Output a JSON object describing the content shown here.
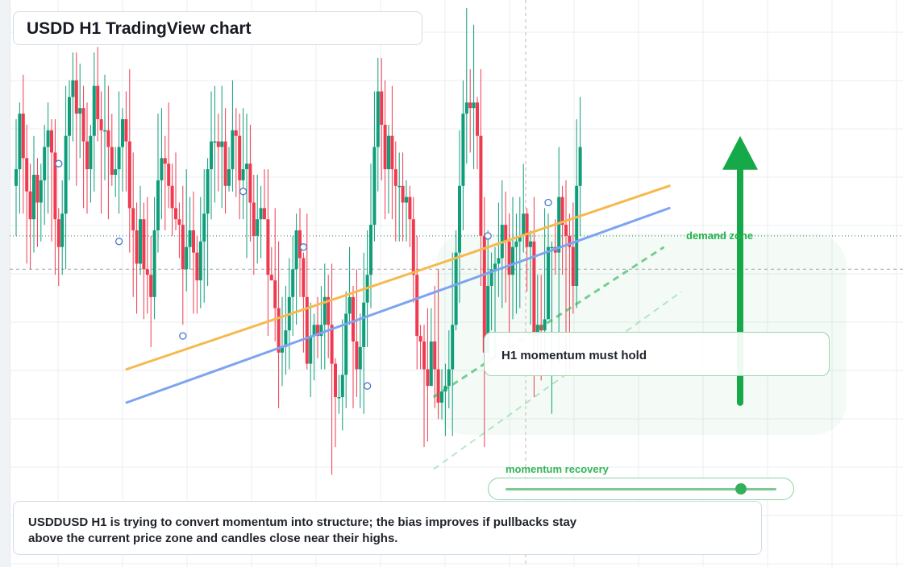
{
  "header": {
    "title": "USDD H1 TradingView chart"
  },
  "annotations": {
    "zone_label": "demand zone",
    "momentum_note": "H1 momentum must hold",
    "meter_label": "momentum recovery",
    "meter_level": 0.87
  },
  "caption": "USDDUSD H1 is trying to convert momentum into structure; the bias improves if pullbacks stay above the current price zone and candles close near their highs.",
  "colors": {
    "bull": "#0f9d7a",
    "bear": "#ee3b4f",
    "trend_orange": "#f6b94f",
    "trend_blue": "#7ea4f0",
    "arrow": "#16a94a",
    "zone": "#22b14c",
    "grid": "#e9edf2"
  },
  "chart_data": {
    "type": "candlestick",
    "symbol": "USDDUSD",
    "timeframe": "H1",
    "y_range": [
      0,
      100
    ],
    "reference_levels": [
      59,
      53
    ],
    "trendlines": [
      {
        "color": "orange",
        "from": [
          0,
          35
        ],
        "to": [
          153,
          68
        ]
      },
      {
        "color": "blue",
        "from": [
          0,
          29
        ],
        "to": [
          153,
          64
        ]
      }
    ],
    "projections": [
      {
        "from": [
          79,
          30
        ],
        "to": [
          144,
          57
        ]
      },
      {
        "from": [
          79,
          17
        ],
        "to": [
          149,
          49
        ]
      }
    ],
    "arrow": {
      "from_y": 29,
      "to_y": 77
    },
    "markers": [
      {
        "x": 7,
        "y": 72
      },
      {
        "x": 24,
        "y": 58
      },
      {
        "x": 42,
        "y": 41
      },
      {
        "x": 59,
        "y": 67
      },
      {
        "x": 76,
        "y": 57
      },
      {
        "x": 94,
        "y": 32
      },
      {
        "x": 128,
        "y": 59
      },
      {
        "x": 145,
        "y": 65
      }
    ],
    "candles": [
      [
        68,
        71,
        80,
        59
      ],
      [
        71,
        81,
        83,
        63
      ],
      [
        81,
        73,
        88,
        63
      ],
      [
        73,
        67,
        79,
        54
      ],
      [
        67,
        62,
        72,
        53
      ],
      [
        62,
        70,
        77,
        56
      ],
      [
        70,
        65,
        73,
        57
      ],
      [
        65,
        69,
        72,
        58
      ],
      [
        69,
        75,
        79,
        61
      ],
      [
        75,
        78,
        83,
        63
      ],
      [
        78,
        74,
        80,
        58
      ],
      [
        74,
        62,
        80,
        52
      ],
      [
        62,
        57,
        64,
        50
      ],
      [
        57,
        63,
        69,
        52
      ],
      [
        63,
        77,
        86,
        53
      ],
      [
        77,
        84,
        87,
        69
      ],
      [
        84,
        87,
        92,
        76
      ],
      [
        87,
        81,
        92,
        68
      ],
      [
        81,
        82,
        90,
        73
      ],
      [
        82,
        76,
        86,
        64
      ],
      [
        76,
        71,
        83,
        63
      ],
      [
        71,
        77,
        79,
        65
      ],
      [
        77,
        86,
        92,
        67
      ],
      [
        86,
        80,
        93,
        76
      ],
      [
        80,
        78,
        85,
        63
      ],
      [
        78,
        78,
        88,
        69
      ],
      [
        78,
        75,
        86,
        62
      ],
      [
        75,
        70,
        81,
        68
      ],
      [
        70,
        71,
        75,
        66
      ],
      [
        71,
        75,
        85,
        63
      ],
      [
        75,
        80,
        82,
        67
      ],
      [
        80,
        76,
        85,
        67
      ],
      [
        76,
        64,
        89,
        56
      ],
      [
        64,
        60,
        74,
        48
      ],
      [
        60,
        54,
        65,
        45
      ],
      [
        54,
        62,
        68,
        52
      ],
      [
        62,
        53,
        65,
        44
      ],
      [
        53,
        52,
        66,
        45
      ],
      [
        52,
        48,
        59,
        39
      ],
      [
        48,
        60,
        66,
        44
      ],
      [
        60,
        69,
        81,
        56
      ],
      [
        69,
        73,
        82,
        62
      ],
      [
        73,
        72,
        77,
        60
      ],
      [
        72,
        68,
        83,
        64
      ],
      [
        68,
        64,
        72,
        59
      ],
      [
        64,
        62,
        74,
        60
      ],
      [
        62,
        61,
        65,
        55
      ],
      [
        61,
        53,
        68,
        43
      ],
      [
        53,
        57,
        71,
        49
      ],
      [
        57,
        60,
        66,
        53
      ],
      [
        60,
        56,
        67,
        45
      ],
      [
        56,
        51,
        59,
        45
      ],
      [
        51,
        58,
        66,
        46
      ],
      [
        58,
        63,
        71,
        47
      ],
      [
        63,
        71,
        73,
        50
      ],
      [
        71,
        76,
        85,
        62
      ],
      [
        76,
        76,
        86,
        65
      ],
      [
        76,
        75,
        81,
        67
      ],
      [
        75,
        76,
        86,
        64
      ],
      [
        76,
        68,
        82,
        63
      ],
      [
        68,
        71,
        75,
        67
      ],
      [
        71,
        78,
        87,
        67
      ],
      [
        78,
        77,
        82,
        66
      ],
      [
        77,
        69,
        81,
        62
      ],
      [
        69,
        71,
        82,
        62
      ],
      [
        71,
        72,
        81,
        55
      ],
      [
        72,
        65,
        79,
        58
      ],
      [
        65,
        59,
        70,
        52
      ],
      [
        59,
        62,
        70,
        54
      ],
      [
        62,
        64,
        68,
        55
      ],
      [
        64,
        62,
        71,
        62
      ],
      [
        62,
        52,
        71,
        41
      ],
      [
        52,
        51,
        57,
        51
      ],
      [
        51,
        46,
        64,
        40
      ],
      [
        46,
        38,
        58,
        28
      ],
      [
        38,
        39,
        48,
        32
      ],
      [
        39,
        42,
        50,
        34
      ],
      [
        42,
        48,
        55,
        35
      ],
      [
        48,
        53,
        59,
        41
      ],
      [
        53,
        60,
        63,
        43
      ],
      [
        60,
        55,
        64,
        48
      ],
      [
        55,
        48,
        56,
        38
      ],
      [
        48,
        36,
        63,
        35
      ],
      [
        36,
        41,
        47,
        30
      ],
      [
        41,
        43,
        45,
        33
      ],
      [
        43,
        41,
        48,
        37
      ],
      [
        41,
        43,
        50,
        35
      ],
      [
        43,
        48,
        54,
        35
      ],
      [
        48,
        43,
        52,
        37
      ],
      [
        43,
        36,
        54,
        16
      ],
      [
        36,
        30,
        37,
        21
      ],
      [
        30,
        30,
        34,
        27
      ],
      [
        30,
        34,
        44,
        24
      ],
      [
        34,
        45,
        49,
        28
      ],
      [
        45,
        48,
        57,
        43
      ],
      [
        48,
        40,
        50,
        28
      ],
      [
        40,
        35,
        53,
        30
      ],
      [
        35,
        39,
        45,
        28
      ],
      [
        39,
        47,
        56,
        27
      ],
      [
        47,
        52,
        60,
        39
      ],
      [
        52,
        61,
        72,
        46
      ],
      [
        61,
        75,
        85,
        58
      ],
      [
        75,
        85,
        91,
        67
      ],
      [
        85,
        79,
        91,
        69
      ],
      [
        79,
        71,
        87,
        62
      ],
      [
        71,
        77,
        79,
        63
      ],
      [
        77,
        71,
        86,
        62
      ],
      [
        71,
        68,
        76,
        58
      ],
      [
        68,
        68,
        74,
        58
      ],
      [
        68,
        65,
        74,
        58
      ],
      [
        65,
        66,
        69,
        58
      ],
      [
        66,
        62,
        68,
        57
      ],
      [
        62,
        52,
        66,
        47
      ],
      [
        52,
        41,
        59,
        35
      ],
      [
        41,
        40,
        43,
        35
      ],
      [
        40,
        35,
        43,
        21
      ],
      [
        35,
        32,
        46,
        22
      ],
      [
        32,
        40,
        46,
        33
      ],
      [
        40,
        35,
        50,
        28
      ],
      [
        35,
        29,
        53,
        26
      ],
      [
        29,
        31,
        35,
        26
      ],
      [
        31,
        32,
        36,
        23
      ],
      [
        32,
        35,
        42,
        28
      ],
      [
        35,
        43,
        56,
        23
      ],
      [
        43,
        56,
        60,
        42
      ],
      [
        56,
        68,
        78,
        47
      ],
      [
        68,
        81,
        87,
        60
      ],
      [
        81,
        83,
        100,
        72
      ],
      [
        83,
        82,
        89,
        74
      ],
      [
        82,
        83,
        97,
        71
      ],
      [
        83,
        77,
        84,
        71
      ],
      [
        77,
        59,
        89,
        50
      ],
      [
        59,
        38,
        66,
        21
      ],
      [
        38,
        50,
        60,
        36
      ],
      [
        50,
        53,
        56,
        42
      ],
      [
        53,
        54,
        57,
        37
      ],
      [
        54,
        55,
        65,
        48
      ],
      [
        55,
        61,
        69,
        46
      ],
      [
        61,
        58,
        67,
        47
      ],
      [
        58,
        52,
        63,
        39
      ],
      [
        52,
        57,
        66,
        44
      ],
      [
        57,
        58,
        63,
        45
      ],
      [
        58,
        59,
        66,
        46
      ],
      [
        59,
        63,
        72,
        56
      ],
      [
        63,
        57,
        64,
        49
      ],
      [
        57,
        58,
        60,
        43
      ],
      [
        58,
        41,
        66,
        30
      ],
      [
        41,
        43,
        52,
        35
      ],
      [
        43,
        42,
        52,
        33
      ],
      [
        42,
        44,
        64,
        36
      ],
      [
        44,
        57,
        63,
        44
      ],
      [
        57,
        57,
        58,
        27
      ],
      [
        57,
        56,
        62,
        52
      ],
      [
        56,
        66,
        75,
        36
      ],
      [
        66,
        61,
        68,
        52
      ],
      [
        61,
        59,
        69,
        34
      ],
      [
        59,
        57,
        63,
        34
      ],
      [
        57,
        50,
        65,
        45
      ],
      [
        50,
        68,
        80,
        46
      ],
      [
        68,
        75,
        84,
        59
      ]
    ]
  }
}
